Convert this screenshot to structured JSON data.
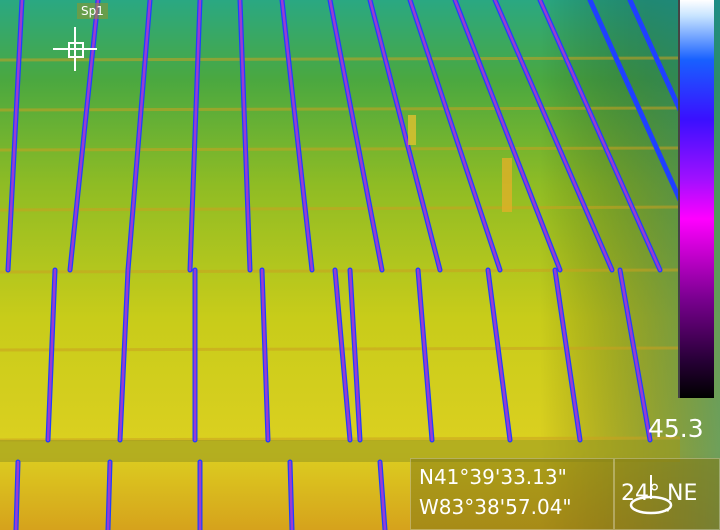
{
  "spot": {
    "label": "Sp1"
  },
  "scale": {
    "max_label": "45.3"
  },
  "gps": {
    "latitude": "N41°39'33.13\"",
    "longitude": "W83°38'57.04\""
  },
  "compass": {
    "heading": "24° NE"
  },
  "colors": {
    "panel_yellow": "#d8d820",
    "panel_green": "#5aa43a",
    "panel_teal": "#2aa08a",
    "gap_purple": "#7b3bd0",
    "gap_blue": "#1f3fff"
  }
}
